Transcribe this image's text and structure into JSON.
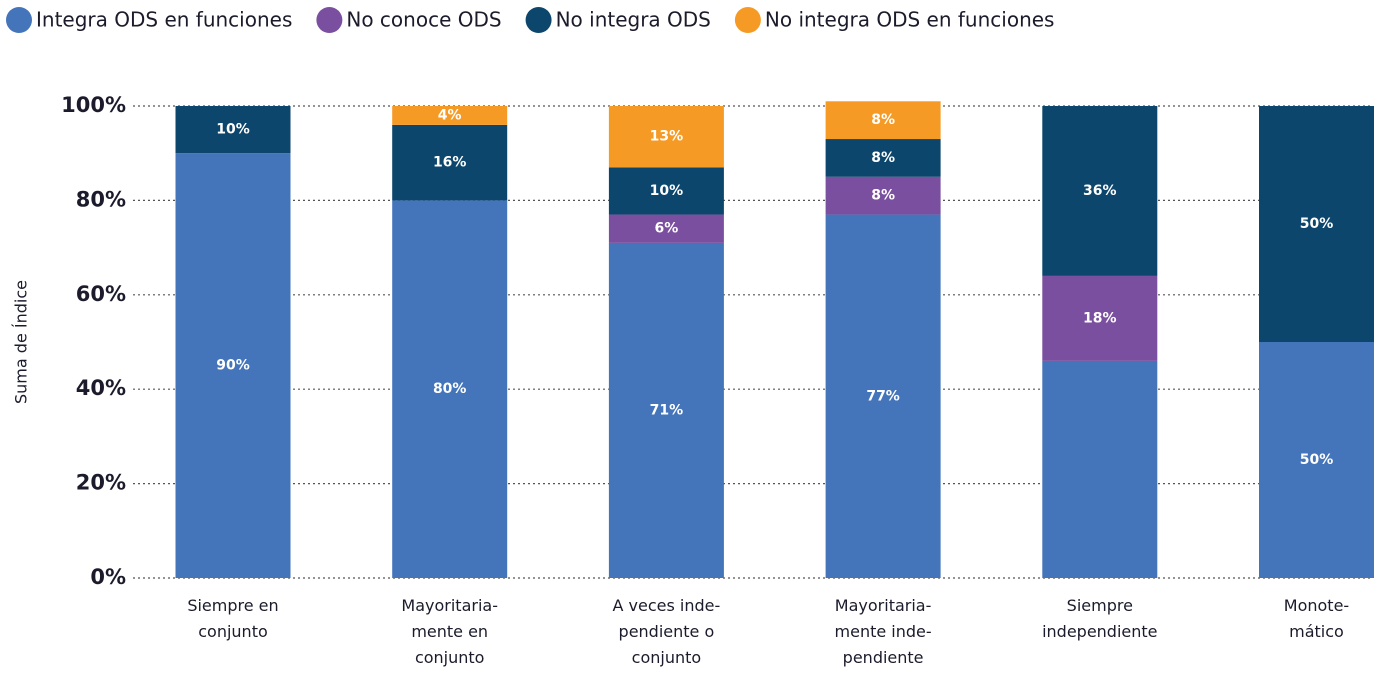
{
  "chart_data": {
    "type": "stacked_bar",
    "y_label": "Suma de Índice",
    "categories": [
      [
        "Siempre en",
        "conjunto"
      ],
      [
        "Mayoritaria-",
        "mente en",
        "conjunto"
      ],
      [
        "A veces inde-",
        "pendiente o",
        "conjunto"
      ],
      [
        "Mayoritaria-",
        "mente inde-",
        "pendiente"
      ],
      [
        "Siempre",
        "independiente"
      ],
      [
        "Monote-",
        "mático"
      ]
    ],
    "series": [
      {
        "name": "Integra ODS en funciones",
        "color": "#4474ba",
        "values": [
          90,
          80,
          71,
          77,
          46,
          50
        ],
        "value_labels": [
          "90%",
          "80%",
          "71%",
          "77%",
          null,
          "50%"
        ]
      },
      {
        "name": "No conoce ODS",
        "color": "#7a4f9f",
        "values": [
          null,
          null,
          6,
          8,
          18,
          null
        ],
        "value_labels": [
          null,
          null,
          "6%",
          "8%",
          "18%",
          null
        ]
      },
      {
        "name": "No integra ODS",
        "color": "#0c466c",
        "values": [
          10,
          16,
          10,
          8,
          36,
          50
        ],
        "value_labels": [
          "10%",
          "16%",
          "10%",
          "8%",
          "36%",
          "50%"
        ]
      },
      {
        "name": "No integra ODS en funciones",
        "color": "#f59b25",
        "values": [
          null,
          4,
          13,
          8,
          null,
          null
        ],
        "value_labels": [
          null,
          "4%",
          "13%",
          "8%",
          null,
          null
        ]
      }
    ],
    "ylim": [
      0,
      100
    ],
    "yticks": [
      {
        "value": 0,
        "label": "0%"
      },
      {
        "value": 20,
        "label": "20%"
      },
      {
        "value": 40,
        "label": "40%"
      },
      {
        "value": 60,
        "label": "60%"
      },
      {
        "value": 80,
        "label": "80%"
      },
      {
        "value": 100,
        "label": "100%"
      }
    ],
    "grid": true
  }
}
